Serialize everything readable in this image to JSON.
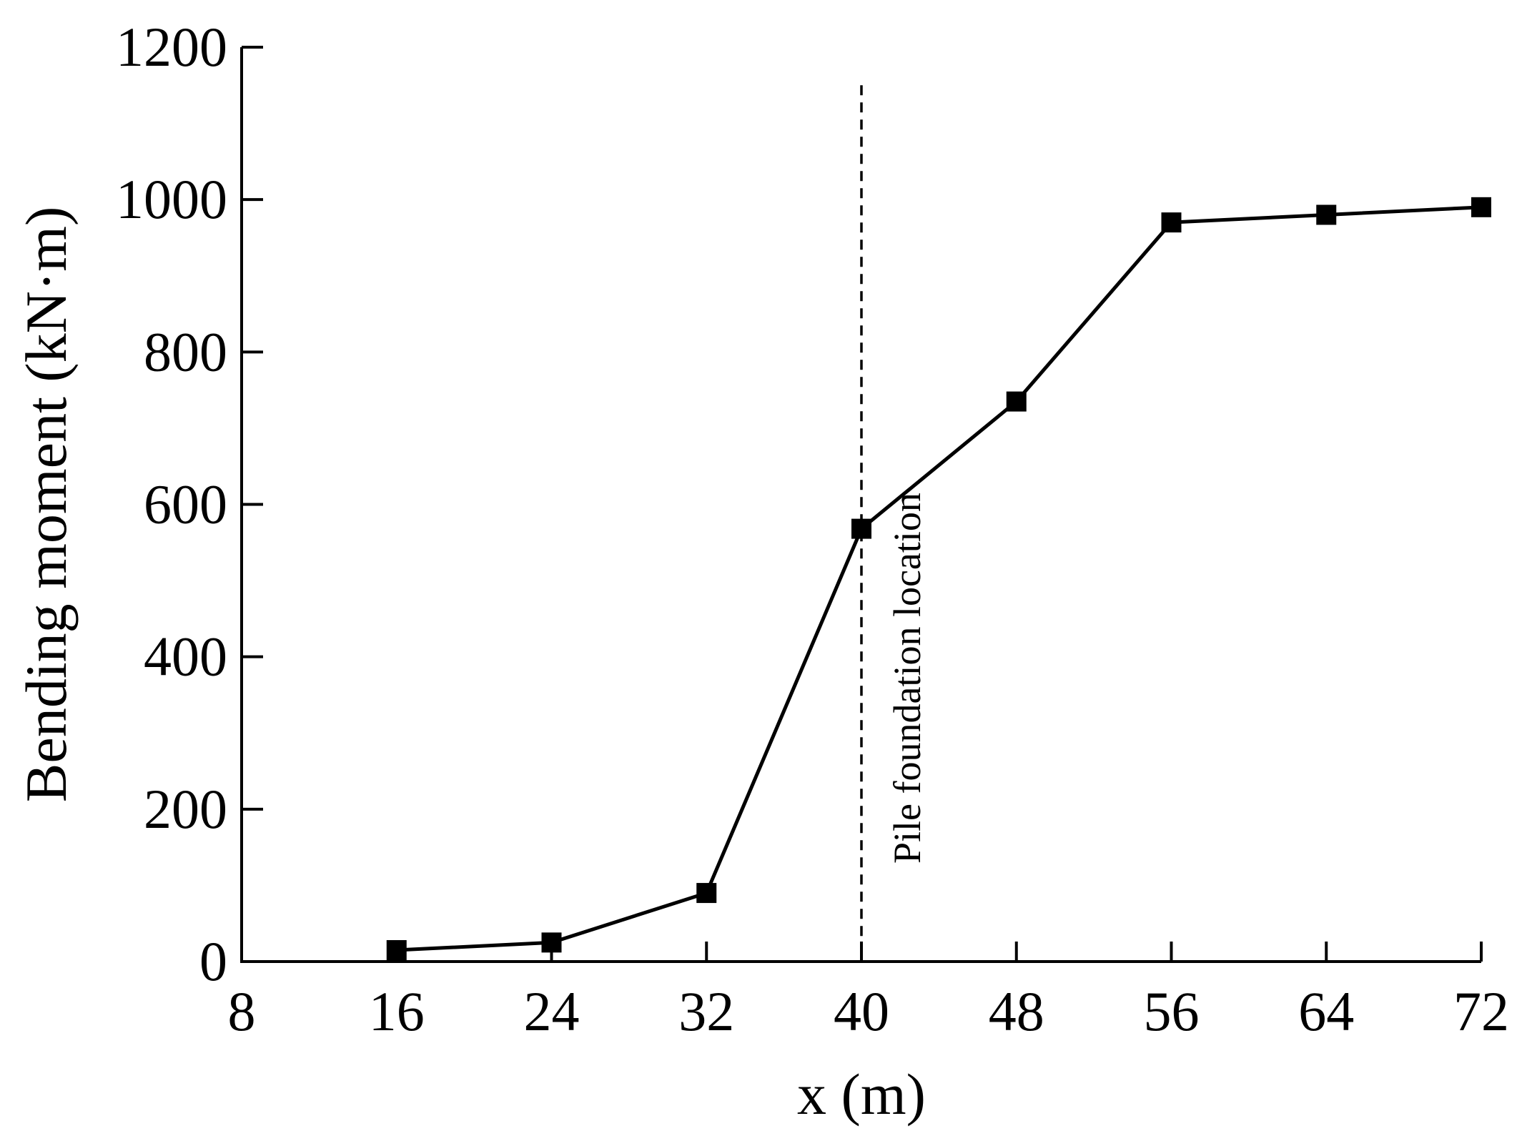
{
  "chart_data": {
    "type": "line",
    "xlabel": "x (m)",
    "ylabel": "Bending moment (kN·m)",
    "xlim": [
      8,
      72
    ],
    "ylim": [
      0,
      1200
    ],
    "xticks": [
      8,
      16,
      24,
      32,
      40,
      48,
      56,
      64,
      72
    ],
    "yticks": [
      0,
      200,
      400,
      600,
      800,
      1000,
      1200
    ],
    "grid": false,
    "series": [
      {
        "marker": "square",
        "color": "#000000",
        "x": [
          16,
          24,
          32,
          40,
          48,
          56,
          64,
          72
        ],
        "values": [
          15,
          25,
          90,
          568,
          735,
          970,
          980,
          990
        ]
      }
    ],
    "reference_line": {
      "x": 40,
      "y_top": 1150,
      "style": "dashed",
      "label": "Pile foundation location"
    }
  }
}
